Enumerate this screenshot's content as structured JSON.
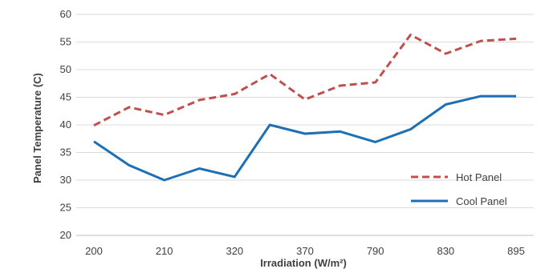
{
  "chart_data": {
    "type": "line",
    "title": "",
    "xlabel": "Irradiation (W/m²)",
    "ylabel": "Panel Temperature (C)",
    "x_tick_labels": [
      "200",
      "210",
      "320",
      "370",
      "790",
      "830",
      "895"
    ],
    "categories": [
      "200",
      "",
      "210",
      "",
      "320",
      "",
      "370",
      "",
      "790",
      "",
      "830",
      "",
      "895"
    ],
    "ylim": [
      20,
      60
    ],
    "yticks": [
      20,
      25,
      30,
      35,
      40,
      45,
      50,
      55,
      60
    ],
    "grid": true,
    "legend_position": "right",
    "series": [
      {
        "name": "Hot Panel",
        "color": "#c0504d",
        "style": "dashed",
        "values": [
          39.9,
          43.2,
          41.8,
          44.5,
          45.6,
          49.2,
          44.6,
          47.1,
          47.7,
          56.3,
          52.9,
          55.2,
          55.6
        ]
      },
      {
        "name": "Cool Panel",
        "color": "#1f6fb5",
        "style": "solid",
        "values": [
          37.0,
          32.7,
          30.0,
          32.1,
          30.6,
          40.0,
          38.4,
          38.8,
          36.9,
          39.2,
          43.7,
          45.2,
          45.2
        ]
      }
    ]
  }
}
